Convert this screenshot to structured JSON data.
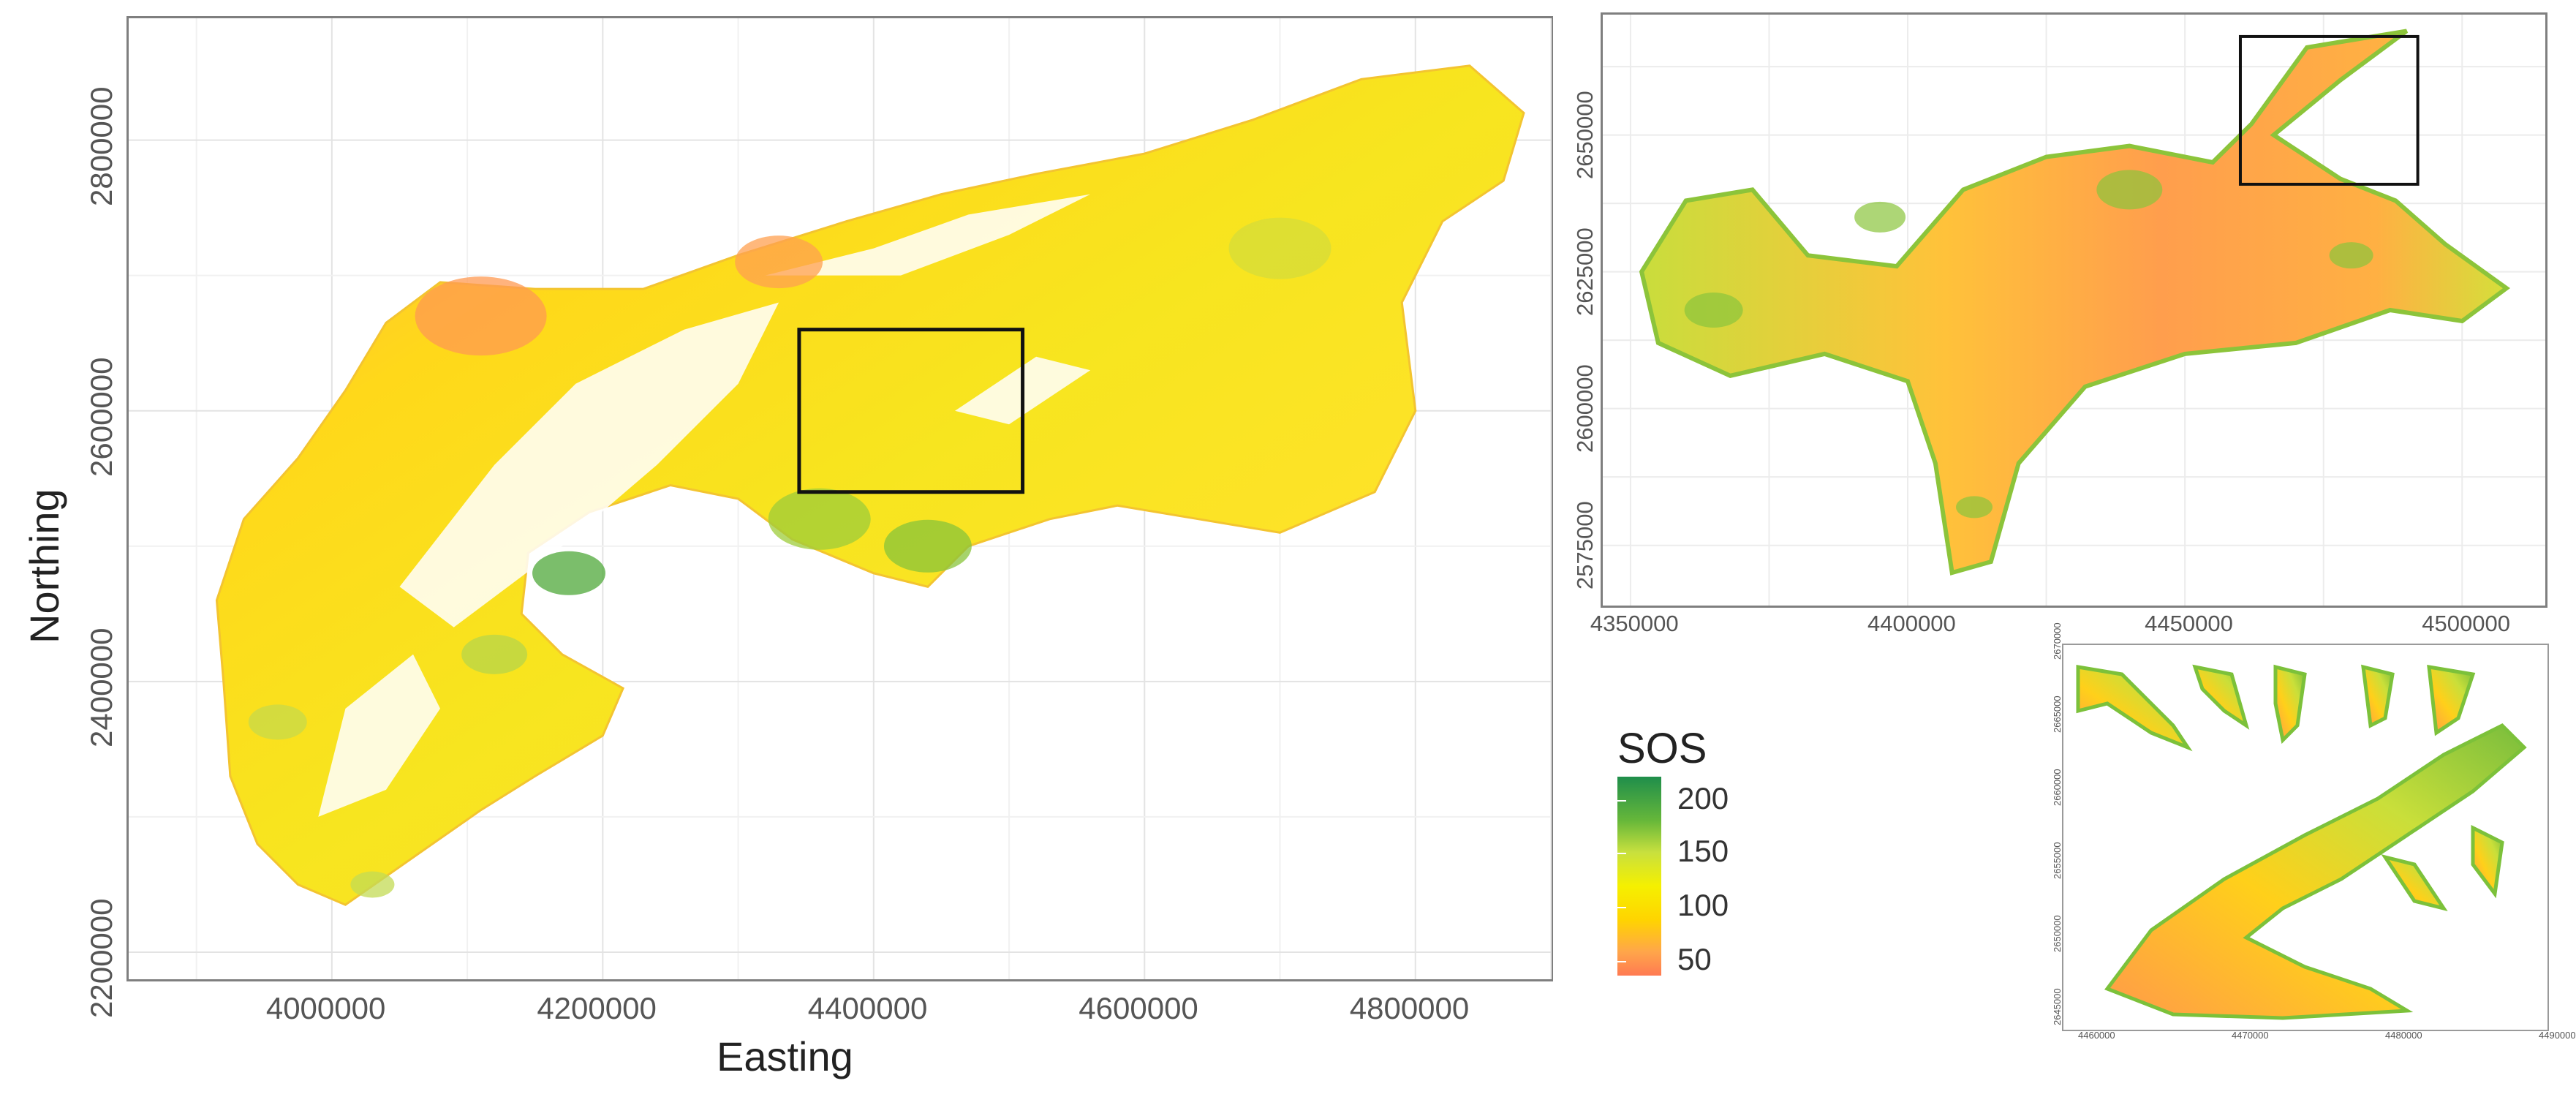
{
  "main_map": {
    "xlabel": "Easting",
    "ylabel": "Northing",
    "x_ticks": [
      "4000000",
      "4200000",
      "4400000",
      "4600000",
      "4800000"
    ],
    "y_ticks": [
      "2200000",
      "2400000",
      "2600000",
      "2800000"
    ],
    "xlim": [
      3850000,
      4900000
    ],
    "ylim": [
      2180000,
      2890000
    ],
    "highlight_box": {
      "x0": 4345000,
      "x1": 4510000,
      "y0": 2540000,
      "y1": 2660000
    }
  },
  "zoom_map": {
    "x_ticks": [
      "4350000",
      "4400000",
      "4450000",
      "4500000"
    ],
    "y_ticks": [
      "2575000",
      "2600000",
      "2625000",
      "2650000"
    ],
    "xlim": [
      4345000,
      4515000
    ],
    "ylim": [
      2564000,
      2672000
    ],
    "highlight_box": {
      "x0": 4460000,
      "x1": 4492000,
      "y0": 2641000,
      "y1": 2668000
    }
  },
  "inset_map": {
    "x_ticks": [
      "4460000",
      "4470000",
      "4480000",
      "4490000"
    ],
    "y_ticks": [
      "2645000",
      "2650000",
      "2655000",
      "2660000",
      "2665000",
      "2670000"
    ]
  },
  "legend": {
    "title": "SOS",
    "ticks": [
      "200",
      "150",
      "100",
      "50"
    ],
    "colors": [
      "#1f8e4b",
      "#66b73a",
      "#c8e03e",
      "#f5f000",
      "#ffd400",
      "#ffa64a",
      "#ff7a52"
    ]
  }
}
